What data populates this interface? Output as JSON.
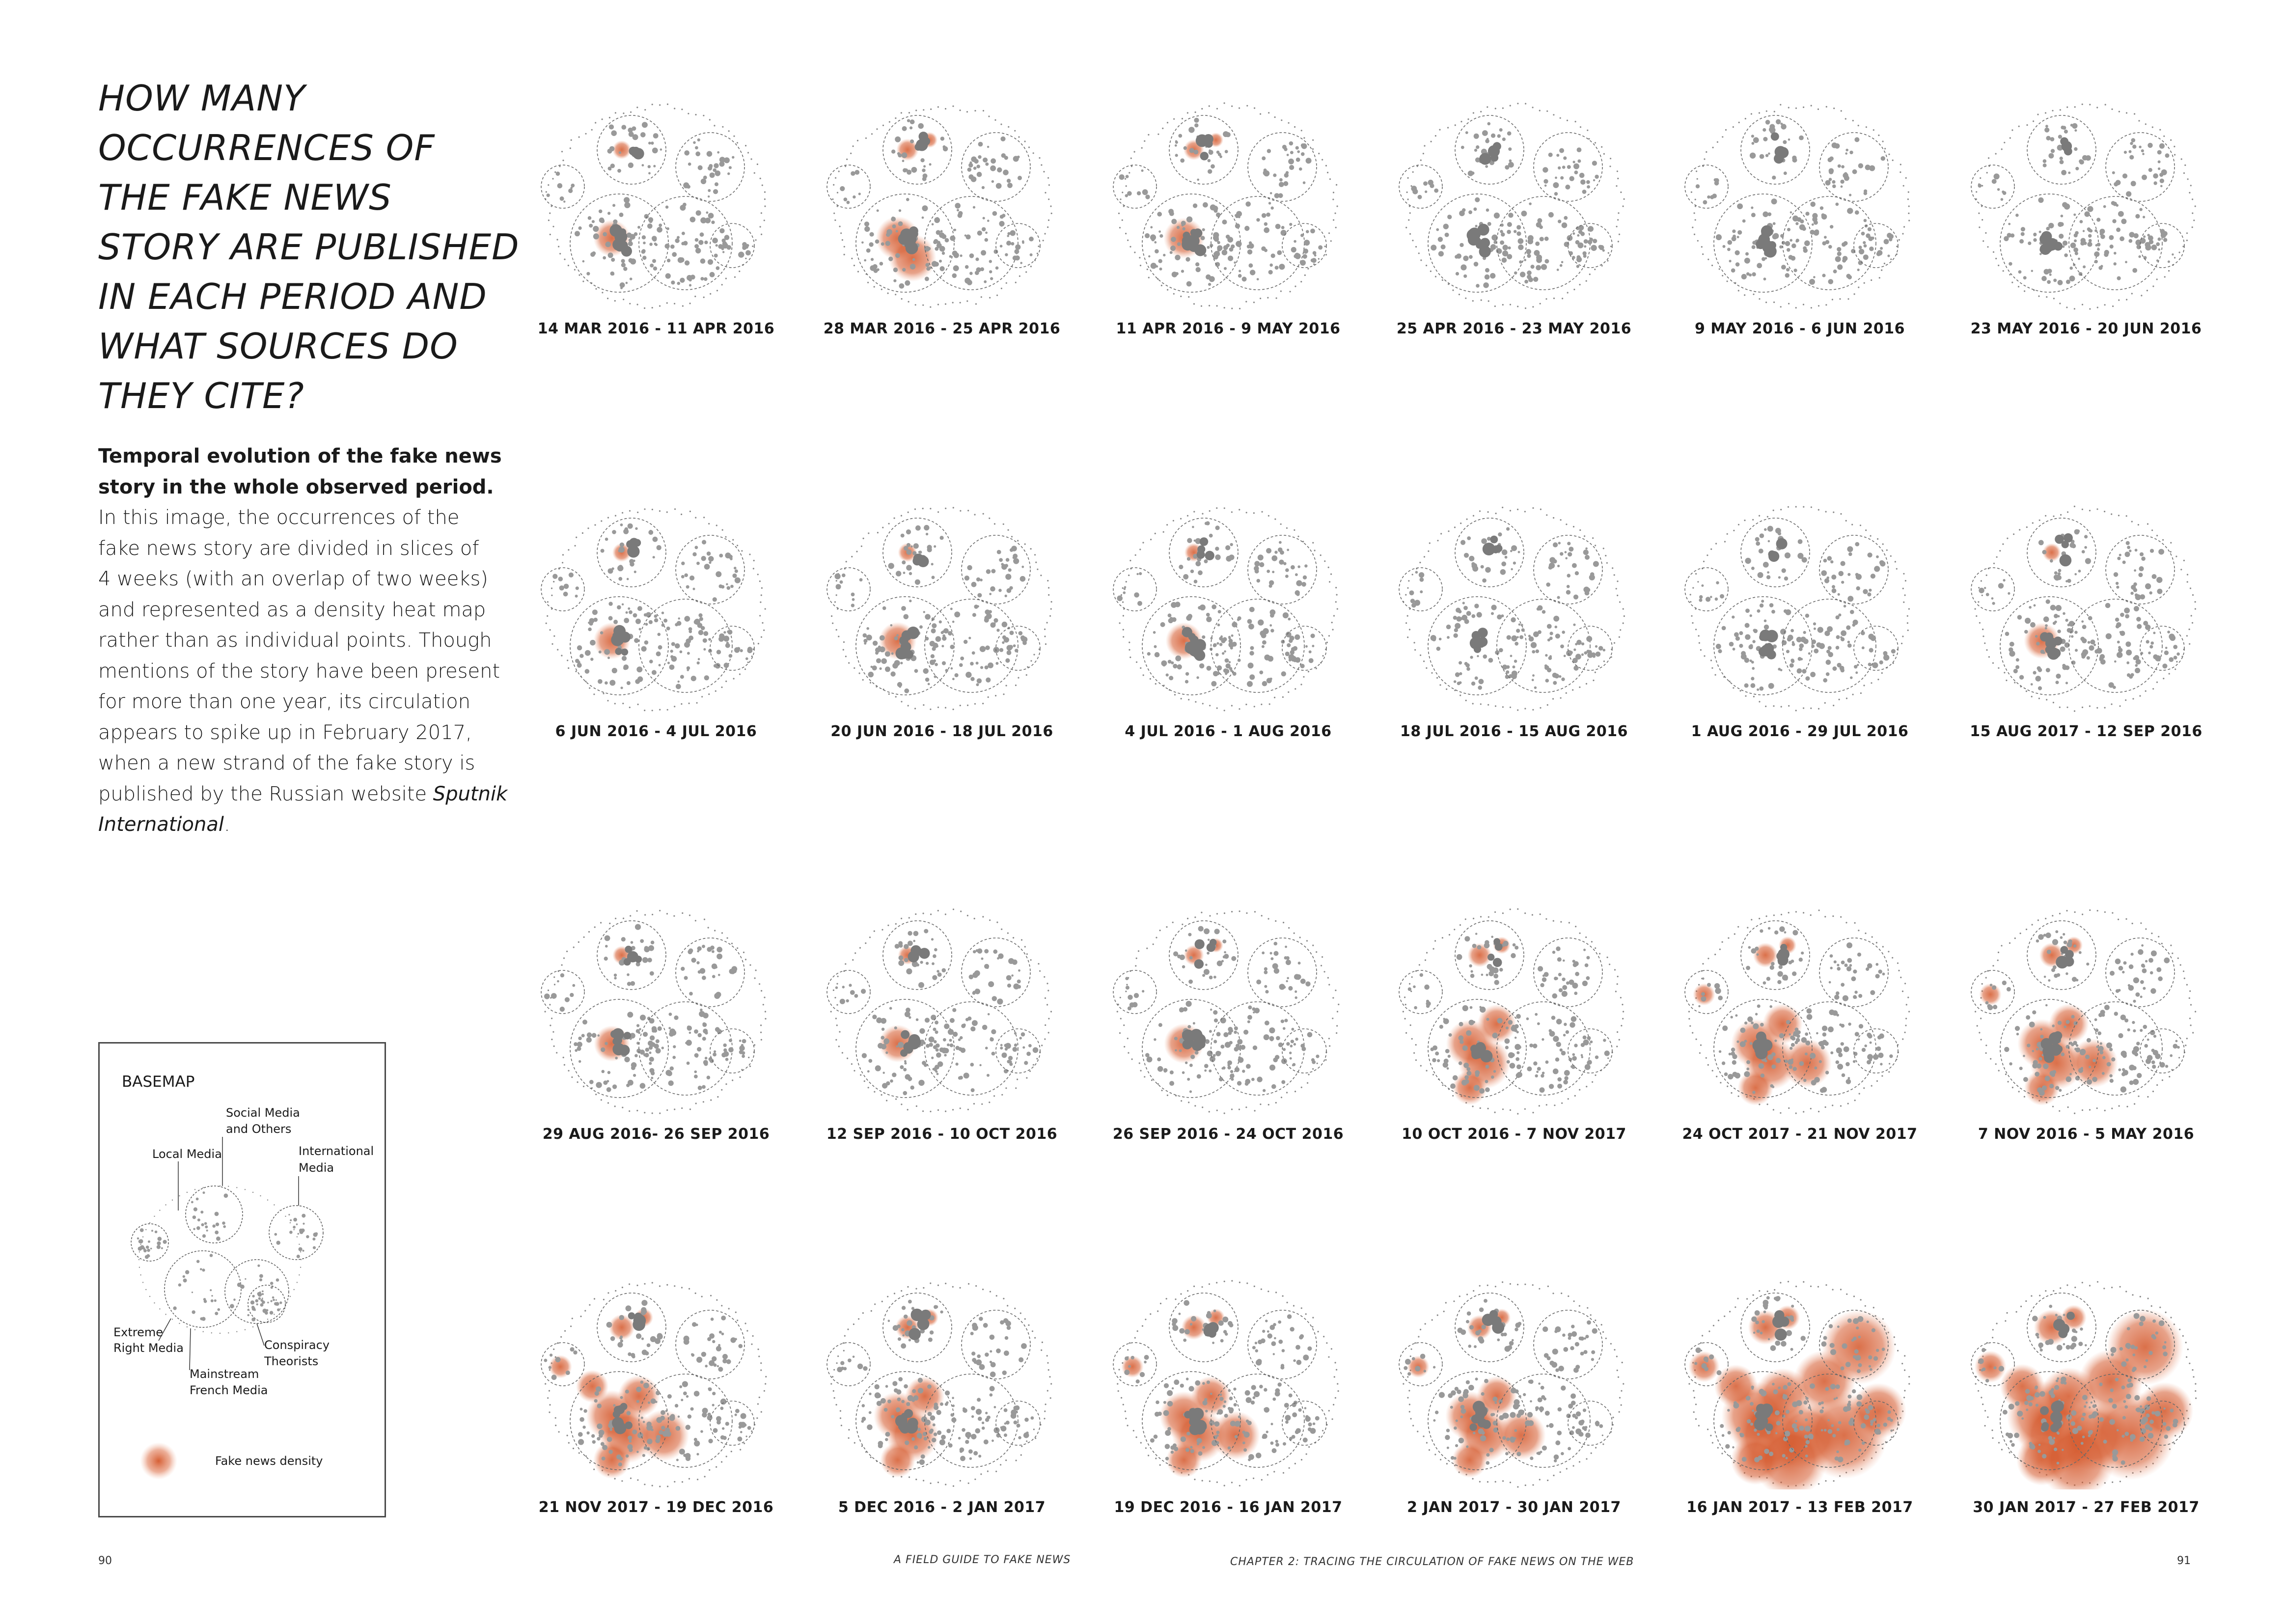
{
  "title_lines": [
    "HOW MANY",
    "OCCURRENCES OF",
    "THE FAKE NEWS",
    "STORY ARE PUBLISHED",
    "IN EACH PERIOD AND",
    "WHAT SOURCES DO",
    "THEY CITE?"
  ],
  "description": {
    "lead_lines": [
      "Temporal evolution of the fake news",
      "story in the whole observed period."
    ],
    "body_lines": [
      "In this image, the occurrences of the",
      "fake news story are divided in slices of",
      "4 weeks (with an overlap of two weeks)",
      "and represented as a density heat map",
      "rather than as individual points. Though",
      "mentions of the story have been present",
      "for more than one year, its circulation",
      "appears to spike up in February 2017,",
      "when a new strand of the fake story is"
    ],
    "last_line_prefix": "published by the Russian website ",
    "italic_source_part1": "Sputnik",
    "italic_source_part2": "International",
    "end_punctuation": "."
  },
  "legend": {
    "title": "BASEMAP",
    "social_media": [
      "Social Media",
      "and Others"
    ],
    "local_media": "Local Media",
    "international_media": [
      "International",
      "Media"
    ],
    "extreme_right_media": [
      "Extreme",
      "Right Media"
    ],
    "conspiracy_theorists": [
      "Conspiracy",
      "Theorists"
    ],
    "mainstream_french_media": [
      "Mainstream",
      "French Media"
    ],
    "density_label": "Fake news density"
  },
  "colors": {
    "heat": "#d4572a",
    "dots": "#8a8a8a",
    "outline": "#6a6a6a"
  },
  "maps": [
    {
      "label": "14 MAR 2016 - 11 APR 2016",
      "intensity": 0.12
    },
    {
      "label": "28 MAR 2016 - 25 APR 2016",
      "intensity": 0.3
    },
    {
      "label": "11 APR 2016 - 9 MAY 2016",
      "intensity": 0.22
    },
    {
      "label": "25 APR 2016 - 23 MAY 2016",
      "intensity": 0.0
    },
    {
      "label": "9 MAY 2016 - 6 JUN 2016",
      "intensity": 0.02
    },
    {
      "label": "23 MAY 2016 - 20 JUN 2016",
      "intensity": 0.06
    },
    {
      "label": "6 JUN 2016 - 4 JUL 2016",
      "intensity": 0.12
    },
    {
      "label": "20 JUN 2016 - 18 JUL 2016",
      "intensity": 0.14
    },
    {
      "label": "4 JUL 2016 - 1 AUG 2016",
      "intensity": 0.12
    },
    {
      "label": "18 JUL 2016 - 15 AUG 2016",
      "intensity": 0.0
    },
    {
      "label": "1 AUG 2016 - 29 JUL 2016",
      "intensity": 0.04
    },
    {
      "label": "15 AUG 2017 - 12 SEP 2016",
      "intensity": 0.1
    },
    {
      "label": "29 AUG 2016- 26 SEP 2016",
      "intensity": 0.1
    },
    {
      "label": "12 SEP 2016 - 10 OCT 2016",
      "intensity": 0.14
    },
    {
      "label": "26 SEP 2016 - 24 OCT 2016",
      "intensity": 0.2
    },
    {
      "label": "10 OCT 2016 - 7 NOV 2017",
      "intensity": 0.4
    },
    {
      "label": "24 OCT 2017 - 21 NOV 2017",
      "intensity": 0.44
    },
    {
      "label": "7 NOV 2016 - 5 MAY 2016",
      "intensity": 0.44
    },
    {
      "label": "21 NOV 2017 - 19 DEC 2016",
      "intensity": 0.5
    },
    {
      "label": "5 DEC 2016 - 2 JAN 2017",
      "intensity": 0.42
    },
    {
      "label": "19 DEC 2016 - 16 JAN 2017",
      "intensity": 0.44
    },
    {
      "label": "2 JAN 2017 - 30 JAN 2017",
      "intensity": 0.44
    },
    {
      "label": "16 JAN 2017 - 13 FEB 2017",
      "intensity": 0.95
    },
    {
      "label": "30 JAN 2017 - 27 FEB 2017",
      "intensity": 1.0
    }
  ],
  "footer": {
    "page_left": "90",
    "guide_title": "A FIELD GUIDE TO FAKE NEWS",
    "chapter": "CHAPTER 2: TRACING THE CIRCULATION OF FAKE NEWS ON THE WEB",
    "page_right": "91"
  }
}
